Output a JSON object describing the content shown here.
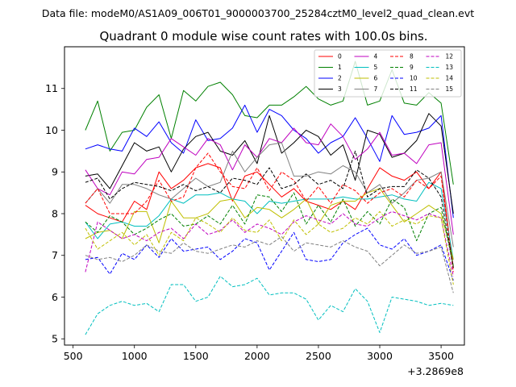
{
  "chart_data": {
    "type": "line",
    "suptitle": "Data file: modeM0/AS1A09_006T01_9000003700_25284cztM0_level2_quad_clean.evt",
    "title": "Quadrant 0 module wise count rates with 100.0s bins.",
    "xlabel": "",
    "ylabel": "",
    "x_offset_label": "+3.2869e8",
    "x": [
      600,
      700,
      800,
      900,
      1000,
      1100,
      1200,
      1300,
      1400,
      1500,
      1600,
      1700,
      1800,
      1900,
      2000,
      2100,
      2200,
      2300,
      2400,
      2500,
      2600,
      2700,
      2800,
      2900,
      3000,
      3100,
      3200,
      3300,
      3400,
      3500,
      3600
    ],
    "xlim": [
      430,
      3690
    ],
    "ylim": [
      4.85,
      12.0
    ],
    "xticks": [
      500,
      1000,
      1500,
      2000,
      2500,
      3000,
      3500
    ],
    "yticks": [
      5,
      6,
      7,
      8,
      9,
      10,
      11
    ],
    "legend_position": "upper right",
    "series": [
      {
        "name": "0",
        "color": "#ff0000",
        "dash": "solid",
        "values": [
          8.2,
          8.0,
          7.9,
          7.8,
          8.3,
          8.1,
          9.0,
          8.6,
          8.8,
          9.1,
          9.2,
          9.1,
          8.3,
          8.9,
          9.0,
          8.7,
          8.4,
          8.6,
          8.3,
          8.2,
          8.1,
          8.3,
          8.1,
          8.6,
          9.1,
          8.9,
          8.8,
          9.0,
          8.6,
          9.0,
          6.7
        ]
      },
      {
        "name": "1",
        "color": "#008000",
        "dash": "solid",
        "values": [
          10.0,
          10.7,
          9.5,
          9.95,
          10.0,
          10.55,
          10.85,
          9.8,
          10.95,
          10.7,
          11.05,
          11.15,
          10.85,
          10.35,
          10.3,
          10.6,
          10.6,
          10.8,
          11.05,
          10.75,
          10.6,
          10.7,
          11.65,
          10.6,
          10.7,
          11.45,
          10.65,
          10.6,
          10.9,
          10.65,
          8.7
        ]
      },
      {
        "name": "2",
        "color": "#0000ff",
        "dash": "solid",
        "values": [
          9.55,
          9.65,
          9.55,
          9.5,
          10.05,
          9.85,
          10.2,
          9.7,
          9.45,
          10.25,
          9.75,
          9.8,
          10.05,
          10.6,
          9.95,
          10.5,
          10.35,
          10.0,
          9.8,
          9.45,
          9.7,
          9.85,
          10.3,
          9.8,
          9.25,
          10.35,
          9.9,
          9.95,
          10.05,
          10.35,
          7.9
        ]
      },
      {
        "name": "3",
        "color": "#000000",
        "dash": "solid",
        "values": [
          8.9,
          8.95,
          8.6,
          9.15,
          9.7,
          9.5,
          9.6,
          9.0,
          9.55,
          9.85,
          9.95,
          9.5,
          9.4,
          9.75,
          9.2,
          10.35,
          9.45,
          9.7,
          10.0,
          9.85,
          9.4,
          9.65,
          8.8,
          10.0,
          9.9,
          9.35,
          9.45,
          9.75,
          10.4,
          10.1,
          8.0
        ]
      },
      {
        "name": "4",
        "color": "#bf00bf",
        "dash": "solid",
        "values": [
          9.05,
          8.6,
          8.45,
          9.0,
          8.95,
          9.3,
          9.35,
          9.8,
          9.6,
          9.4,
          9.8,
          9.65,
          9.05,
          9.65,
          9.35,
          9.8,
          9.7,
          10.05,
          9.7,
          9.65,
          10.15,
          9.85,
          9.3,
          9.55,
          9.95,
          9.4,
          9.45,
          9.2,
          9.65,
          9.7,
          7.5
        ]
      },
      {
        "name": "5",
        "color": "#00bfbf",
        "dash": "solid",
        "values": [
          7.8,
          7.4,
          7.75,
          7.8,
          7.7,
          7.7,
          7.95,
          8.35,
          8.25,
          8.45,
          8.45,
          8.5,
          8.35,
          8.3,
          8.0,
          8.3,
          8.25,
          8.3,
          8.35,
          8.35,
          8.35,
          8.4,
          8.35,
          8.35,
          8.4,
          8.45,
          8.35,
          8.3,
          8.75,
          8.6,
          6.9
        ]
      },
      {
        "name": "6",
        "color": "#bfbf00",
        "dash": "solid",
        "values": [
          7.4,
          7.55,
          7.6,
          7.4,
          8.05,
          8.05,
          7.3,
          8.3,
          7.9,
          7.9,
          8.0,
          8.3,
          8.35,
          7.9,
          8.15,
          8.1,
          7.9,
          8.1,
          8.35,
          7.75,
          8.2,
          8.3,
          8.3,
          8.5,
          8.6,
          8.2,
          7.8,
          8.0,
          8.2,
          8.0,
          6.9
        ]
      },
      {
        "name": "7",
        "color": "#808080",
        "dash": "solid",
        "values": [
          8.25,
          8.6,
          8.25,
          8.7,
          8.7,
          8.6,
          8.45,
          8.35,
          8.6,
          8.85,
          8.65,
          8.75,
          9.5,
          9.0,
          9.35,
          9.65,
          9.7,
          8.9,
          8.9,
          9.0,
          8.95,
          9.15,
          9.0,
          8.5,
          8.7,
          8.25,
          8.5,
          8.8,
          8.85,
          9.0,
          7.2
        ]
      },
      {
        "name": "8",
        "color": "#ff0000",
        "dash": "dashed",
        "values": [
          8.25,
          8.6,
          8.0,
          8.0,
          8.0,
          8.3,
          8.8,
          8.3,
          8.4,
          9.1,
          9.45,
          9.0,
          8.65,
          8.6,
          9.1,
          8.55,
          9.0,
          8.8,
          8.3,
          8.65,
          8.25,
          8.7,
          8.55,
          8.25,
          8.5,
          8.6,
          8.4,
          8.8,
          8.6,
          8.9,
          6.6
        ]
      },
      {
        "name": "9",
        "color": "#008000",
        "dash": "dashed",
        "values": [
          7.8,
          7.55,
          7.95,
          7.8,
          7.5,
          7.65,
          7.85,
          8.0,
          7.7,
          7.75,
          7.95,
          7.75,
          8.2,
          7.75,
          8.45,
          8.4,
          8.05,
          8.5,
          7.75,
          8.2,
          7.8,
          8.35,
          7.7,
          8.05,
          7.75,
          8.35,
          8.15,
          7.35,
          8.0,
          8.15,
          6.75
        ]
      },
      {
        "name": "10",
        "color": "#0000ff",
        "dash": "dashed",
        "values": [
          6.9,
          6.95,
          6.55,
          7.05,
          6.9,
          7.25,
          6.95,
          7.4,
          7.1,
          7.15,
          7.2,
          6.9,
          7.1,
          7.4,
          7.3,
          6.65,
          7.1,
          7.55,
          6.9,
          6.85,
          6.9,
          7.3,
          7.5,
          7.65,
          7.25,
          7.15,
          7.4,
          7.0,
          7.1,
          7.25,
          6.4
        ]
      },
      {
        "name": "11",
        "color": "#000000",
        "dash": "dashed",
        "values": [
          8.75,
          8.85,
          8.35,
          8.6,
          8.75,
          8.7,
          8.65,
          8.55,
          8.7,
          8.55,
          8.65,
          8.5,
          8.85,
          8.8,
          8.7,
          9.1,
          8.6,
          8.7,
          8.95,
          8.7,
          8.8,
          8.6,
          9.5,
          8.4,
          8.6,
          8.65,
          8.65,
          9.05,
          8.85,
          8.4,
          6.7
        ]
      },
      {
        "name": "12",
        "color": "#bf00bf",
        "dash": "dashed",
        "values": [
          6.6,
          7.8,
          7.6,
          7.4,
          7.5,
          7.35,
          7.55,
          7.65,
          7.4,
          7.75,
          7.5,
          7.6,
          7.85,
          7.55,
          7.75,
          7.65,
          7.5,
          7.8,
          7.95,
          7.85,
          7.75,
          8.0,
          7.75,
          7.7,
          7.9,
          8.05,
          7.95,
          7.85,
          8.0,
          7.9,
          6.5
        ]
      },
      {
        "name": "13",
        "color": "#00bfbf",
        "dash": "dashed",
        "values": [
          5.1,
          5.6,
          5.8,
          5.9,
          5.8,
          5.85,
          5.65,
          6.3,
          6.3,
          5.9,
          6.0,
          6.5,
          6.25,
          6.3,
          6.45,
          6.05,
          6.1,
          6.1,
          5.95,
          5.45,
          5.8,
          5.65,
          6.2,
          5.9,
          5.15,
          6.0,
          5.95,
          5.9,
          5.8,
          5.85,
          5.8
        ]
      },
      {
        "name": "14",
        "color": "#bfbf00",
        "dash": "dashed",
        "values": [
          7.65,
          7.15,
          7.35,
          7.55,
          7.25,
          7.5,
          7.0,
          7.55,
          7.35,
          7.9,
          7.75,
          7.55,
          7.9,
          7.6,
          7.55,
          7.85,
          7.35,
          7.85,
          7.5,
          7.75,
          7.55,
          7.65,
          7.9,
          7.75,
          8.05,
          7.7,
          7.85,
          7.75,
          7.95,
          7.9,
          6.3
        ]
      },
      {
        "name": "15",
        "color": "#808080",
        "dash": "dashed",
        "values": [
          7.0,
          6.9,
          6.95,
          6.85,
          7.0,
          7.25,
          7.1,
          7.05,
          7.3,
          7.1,
          7.05,
          7.15,
          7.25,
          7.2,
          7.35,
          7.25,
          7.45,
          7.1,
          7.3,
          7.25,
          7.2,
          7.35,
          7.2,
          7.1,
          6.75,
          7.0,
          7.25,
          7.05,
          7.1,
          7.2,
          6.1
        ]
      }
    ]
  }
}
